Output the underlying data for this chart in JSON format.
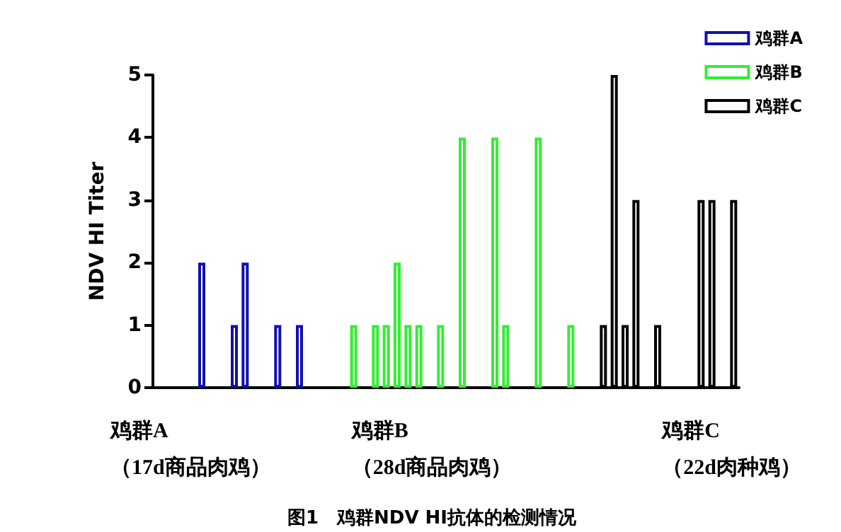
{
  "chart_data": {
    "type": "bar",
    "title": "图1　鸡群NDV HI抗体的检测情况",
    "ylabel": "NDV HI Titer",
    "categories": [
      null,
      null,
      null,
      null,
      null,
      null,
      null,
      null,
      null,
      null,
      null,
      null,
      null,
      null,
      null,
      null,
      null,
      null,
      null,
      null,
      null,
      null,
      null,
      null,
      null,
      null,
      null,
      null,
      null,
      null,
      null,
      null,
      null,
      null,
      null,
      null,
      null,
      null,
      null,
      null,
      null,
      null,
      null,
      null,
      null,
      null,
      null,
      null,
      null,
      null,
      null,
      null,
      null,
      null
    ],
    "series": [
      {
        "name": "鸡群A",
        "color": "#1010b0",
        "values": [
          null,
          null,
          null,
          null,
          2,
          null,
          null,
          1,
          2,
          null,
          null,
          1,
          null,
          1,
          null,
          null,
          null,
          null,
          null,
          null,
          null,
          null,
          null,
          null,
          null,
          null,
          null,
          null,
          null,
          null,
          null,
          null,
          null,
          null,
          null,
          null,
          null,
          null,
          null,
          null,
          null,
          null,
          null,
          null,
          null,
          null,
          null,
          null,
          null,
          null,
          null,
          null,
          null,
          null
        ]
      },
      {
        "name": "鸡群B",
        "color": "#33ee33",
        "values": [
          null,
          null,
          null,
          null,
          null,
          null,
          null,
          null,
          null,
          null,
          null,
          null,
          null,
          null,
          null,
          null,
          null,
          null,
          1,
          null,
          1,
          1,
          2,
          1,
          1,
          null,
          1,
          null,
          4,
          null,
          null,
          4,
          1,
          null,
          null,
          4,
          null,
          null,
          1,
          null,
          null,
          null,
          null,
          null,
          null,
          null,
          null,
          null,
          null,
          null,
          null,
          null,
          null,
          null
        ]
      },
      {
        "name": "鸡群C",
        "color": "#000000",
        "values": [
          null,
          null,
          null,
          null,
          null,
          null,
          null,
          null,
          null,
          null,
          null,
          null,
          null,
          null,
          null,
          null,
          null,
          null,
          null,
          null,
          null,
          null,
          null,
          null,
          null,
          null,
          null,
          null,
          null,
          null,
          null,
          null,
          null,
          null,
          null,
          null,
          null,
          null,
          null,
          null,
          null,
          1,
          5,
          1,
          3,
          null,
          1,
          null,
          null,
          null,
          3,
          3,
          null,
          3
        ]
      }
    ],
    "ylim": [
      0,
      5
    ],
    "yticks": [
      0,
      1,
      2,
      3,
      4,
      5
    ],
    "grid": false,
    "legend": "top right",
    "annotations": [
      "鸡群A\n（17d商品肉鸡）",
      "鸡群B\n（28d商品肉鸡）",
      "鸡群C\n（22d肉种鸡）"
    ]
  }
}
